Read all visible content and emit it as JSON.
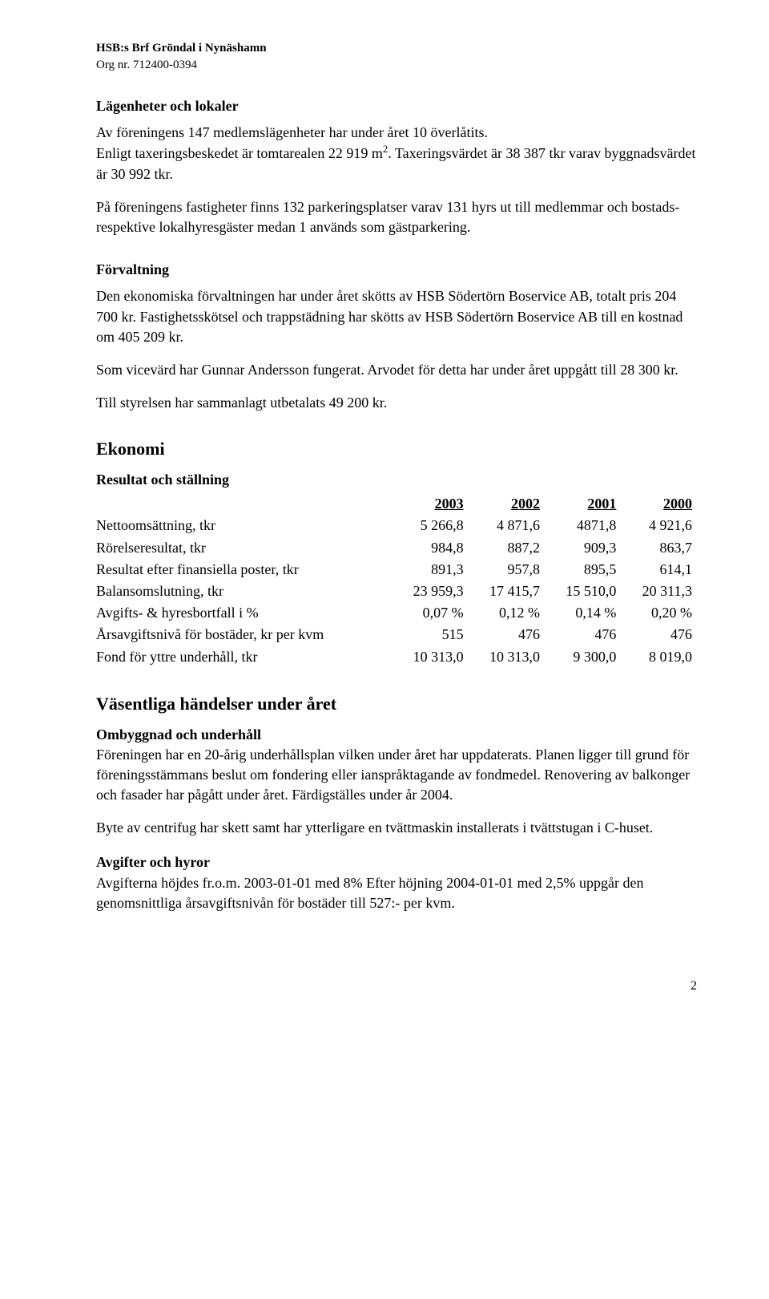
{
  "header": {
    "line1": "HSB:s Brf Gröndal i Nynäshamn",
    "line2": "Org nr. 712400-0394"
  },
  "sections": {
    "lagenheter": {
      "heading": "Lägenheter och lokaler",
      "p1a": "Av föreningens 147 medlemslägenheter har under året 10 överlåtits.",
      "p1a2_pre": "Enligt taxeringsbeskedet är tomtarealen 22 919 m",
      "p1a2_sup": "2",
      "p1a2_post": ". Taxeringsvärdet är 38 387 tkr varav byggnadsvärdet är 30 992 tkr.",
      "p2": "På föreningens fastigheter finns 132 parkeringsplatser varav 131 hyrs ut till medlemmar och bostads- respektive lokalhyresgäster medan 1 används som gästparkering."
    },
    "forvaltning": {
      "heading": "Förvaltning",
      "p1": "Den ekonomiska förvaltningen har under året skötts av HSB Södertörn Boservice AB, totalt pris 204 700 kr. Fastighetsskötsel och trappstädning har skötts av HSB Södertörn Boservice AB till en kostnad om 405 209 kr.",
      "p2": "Som vicevärd har Gunnar Andersson fungerat. Arvodet för detta har under året uppgått till 28 300 kr.",
      "p3": "Till styrelsen har sammanlagt utbetalats 49 200 kr."
    },
    "ekonomi": {
      "heading": "Ekonomi",
      "subheading": "Resultat och ställning",
      "years": [
        "2003",
        "2002",
        "2001",
        "2000"
      ],
      "rows": [
        {
          "label": "Nettoomsättning, tkr",
          "values": [
            "5 266,8",
            "4 871,6",
            "4871,8",
            "4 921,6"
          ]
        },
        {
          "label": "Rörelseresultat, tkr",
          "values": [
            "984,8",
            "887,2",
            "909,3",
            "863,7"
          ]
        },
        {
          "label": "Resultat efter finansiella poster, tkr",
          "values": [
            "891,3",
            "957,8",
            "895,5",
            "614,1"
          ]
        },
        {
          "label": "Balansomslutning, tkr",
          "values": [
            "23 959,3",
            "17 415,7",
            "15 510,0",
            "20 311,3"
          ]
        },
        {
          "label": "Avgifts- & hyresbortfall i %",
          "values": [
            "0,07 %",
            "0,12 %",
            "0,14 %",
            "0,20 %"
          ]
        },
        {
          "label": "Årsavgiftsnivå för bostäder, kr per kvm",
          "values": [
            "515",
            "476",
            "476",
            "476"
          ]
        },
        {
          "label": "Fond för yttre underhåll, tkr",
          "values": [
            "10 313,0",
            "10 313,0",
            "9 300,0",
            "8 019,0"
          ]
        }
      ]
    },
    "vasentliga": {
      "heading": "Väsentliga händelser under året",
      "sub1": "Ombyggnad och underhåll",
      "sub1_p1": "Föreningen har en 20-årig underhållsplan vilken under året har uppdaterats. Planen ligger till grund för föreningsstämmans beslut om fondering eller ianspråktagande av fondmedel. Renovering av balkonger och fasader har pågått under året. Färdigställes under år 2004.",
      "sub1_p2": "Byte av centrifug har skett samt har ytterligare en tvättmaskin installerats i tvättstugan i C-huset.",
      "sub2": "Avgifter och hyror",
      "sub2_p1": "Avgifterna höjdes fr.o.m. 2003-01-01 med 8% Efter höjning 2004-01-01 med 2,5% uppgår den genomsnittliga årsavgiftsnivån för bostäder till 527:- per kvm."
    }
  },
  "pageNumber": "2"
}
